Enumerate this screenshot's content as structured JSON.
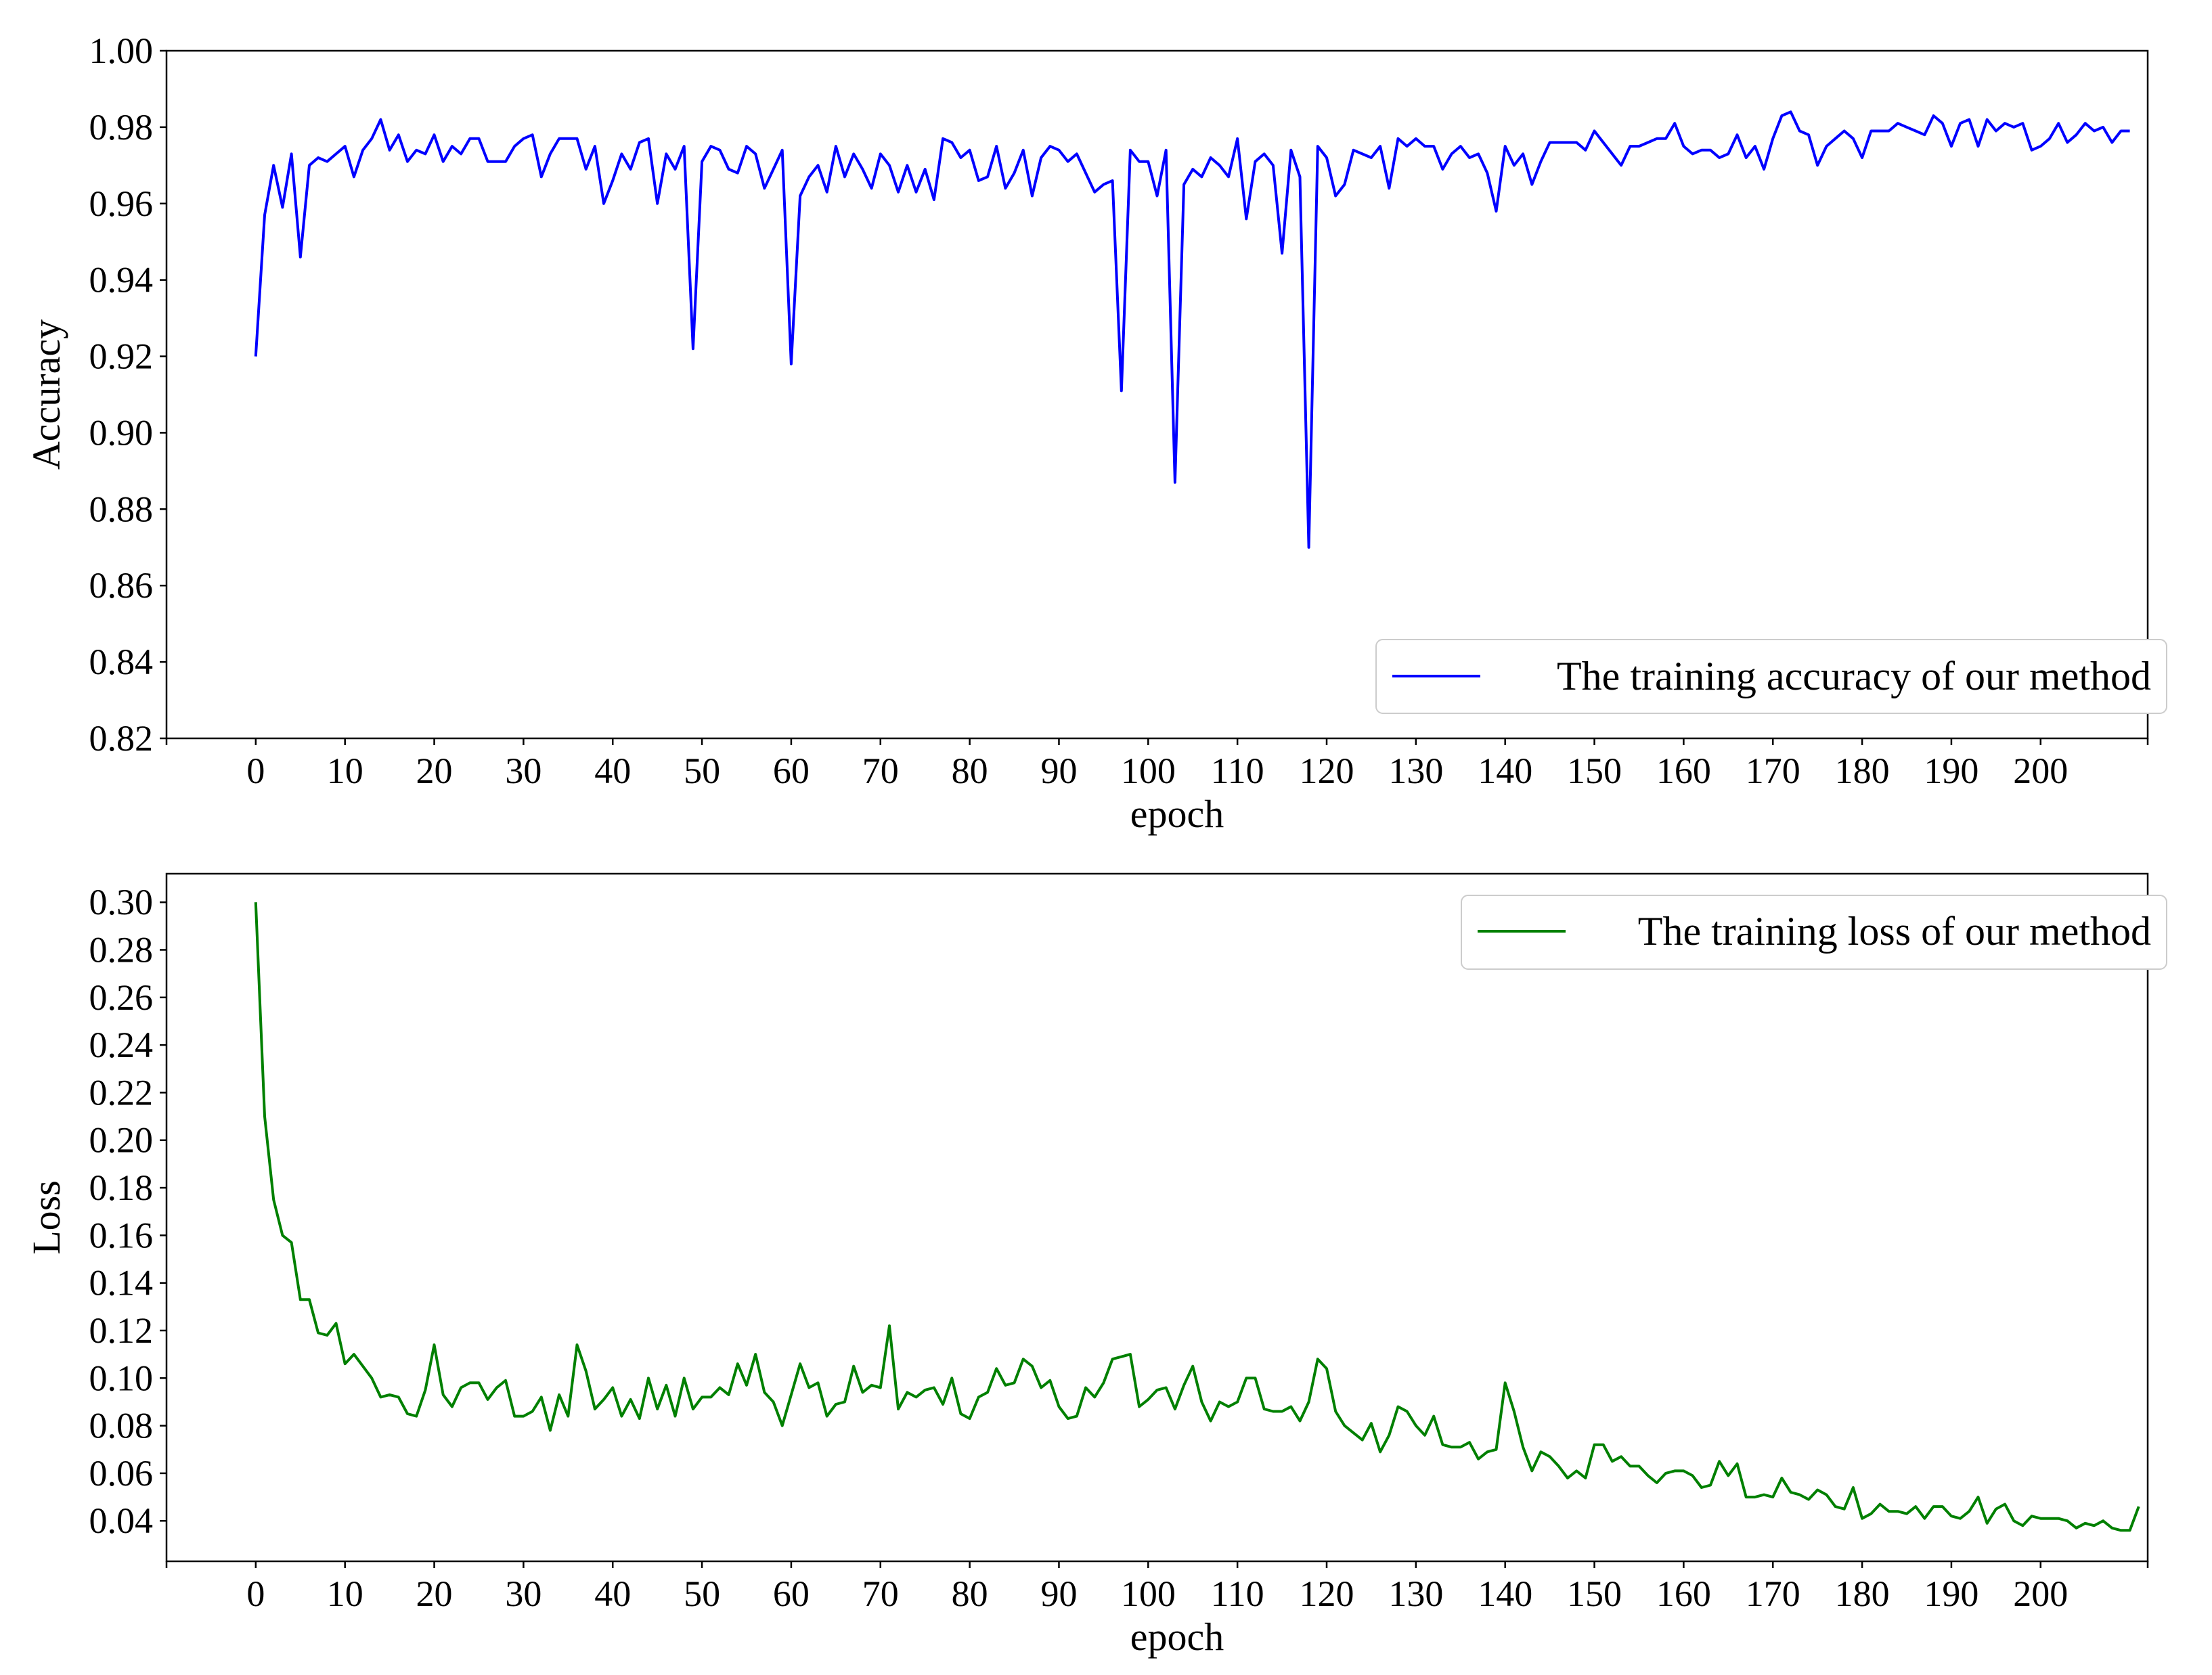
{
  "chart_data": [
    {
      "type": "line",
      "xlabel": "epoch",
      "ylabel": "Accuracy",
      "xlim": [
        -10,
        212
      ],
      "ylim": [
        0.82,
        1.0
      ],
      "xticks": [
        0,
        10,
        20,
        30,
        40,
        50,
        60,
        70,
        80,
        90,
        100,
        110,
        120,
        130,
        140,
        150,
        160,
        170,
        180,
        190,
        200
      ],
      "yticks": [
        0.82,
        0.84,
        0.86,
        0.88,
        0.9,
        0.92,
        0.94,
        0.96,
        0.98,
        1.0
      ],
      "ytick_labels": [
        "0.82",
        "0.84",
        "0.86",
        "0.88",
        "0.90",
        "0.92",
        "0.94",
        "0.96",
        "0.98",
        "1.00"
      ],
      "grid": false,
      "legend_position": "lower-right",
      "series": [
        {
          "name": "The training accuracy of our method",
          "color": "#0000ff",
          "x_start": 0,
          "values": [
            0.92,
            0.957,
            0.97,
            0.959,
            0.973,
            0.946,
            0.97,
            0.972,
            0.971,
            0.973,
            0.975,
            0.967,
            0.974,
            0.977,
            0.982,
            0.974,
            0.978,
            0.971,
            0.974,
            0.973,
            0.978,
            0.971,
            0.975,
            0.973,
            0.977,
            0.977,
            0.971,
            0.971,
            0.971,
            0.975,
            0.977,
            0.978,
            0.967,
            0.973,
            0.977,
            0.977,
            0.977,
            0.969,
            0.975,
            0.96,
            0.966,
            0.973,
            0.969,
            0.976,
            0.977,
            0.96,
            0.973,
            0.969,
            0.975,
            0.922,
            0.971,
            0.975,
            0.974,
            0.969,
            0.968,
            0.975,
            0.973,
            0.964,
            0.969,
            0.974,
            0.918,
            0.962,
            0.967,
            0.97,
            0.963,
            0.975,
            0.967,
            0.973,
            0.969,
            0.964,
            0.973,
            0.97,
            0.963,
            0.97,
            0.963,
            0.969,
            0.961,
            0.977,
            0.976,
            0.972,
            0.974,
            0.966,
            0.967,
            0.975,
            0.964,
            0.968,
            0.974,
            0.962,
            0.972,
            0.975,
            0.974,
            0.971,
            0.973,
            0.968,
            0.963,
            0.965,
            0.966,
            0.911,
            0.974,
            0.971,
            0.971,
            0.962,
            0.974,
            0.887,
            0.965,
            0.969,
            0.967,
            0.972,
            0.97,
            0.967,
            0.977,
            0.956,
            0.971,
            0.973,
            0.97,
            0.947,
            0.974,
            0.967,
            0.87,
            0.975,
            0.972,
            0.962,
            0.965,
            0.974,
            0.973,
            0.972,
            0.975,
            0.964,
            0.977,
            0.975,
            0.977,
            0.975,
            0.975,
            0.969,
            0.973,
            0.975,
            0.972,
            0.973,
            0.968,
            0.958,
            0.975,
            0.97,
            0.973,
            0.965,
            0.971,
            0.976,
            0.976,
            0.976,
            0.976,
            0.974,
            0.979,
            0.976,
            0.973,
            0.97,
            0.975,
            0.975,
            0.976,
            0.977,
            0.977,
            0.981,
            0.975,
            0.973,
            0.974,
            0.974,
            0.972,
            0.973,
            0.978,
            0.972,
            0.975,
            0.969,
            0.977,
            0.983,
            0.984,
            0.979,
            0.978,
            0.97,
            0.975,
            0.977,
            0.979,
            0.977,
            0.972,
            0.979,
            0.979,
            0.979,
            0.981,
            0.98,
            0.979,
            0.978,
            0.983,
            0.981,
            0.975,
            0.981,
            0.982,
            0.975,
            0.982,
            0.979,
            0.981,
            0.98,
            0.981,
            0.974,
            0.975,
            0.977,
            0.981,
            0.976,
            0.978,
            0.981,
            0.979,
            0.98,
            0.976,
            0.979,
            0.979
          ]
        }
      ]
    },
    {
      "type": "line",
      "xlabel": "epoch",
      "ylabel": "Loss",
      "xlim": [
        -10,
        212
      ],
      "ylim": [
        0.023,
        0.312
      ],
      "xticks": [
        0,
        10,
        20,
        30,
        40,
        50,
        60,
        70,
        80,
        90,
        100,
        110,
        120,
        130,
        140,
        150,
        160,
        170,
        180,
        190,
        200
      ],
      "yticks": [
        0.04,
        0.06,
        0.08,
        0.1,
        0.12,
        0.14,
        0.16,
        0.18,
        0.2,
        0.22,
        0.24,
        0.26,
        0.28,
        0.3
      ],
      "ytick_labels": [
        "0.04",
        "0.06",
        "0.08",
        "0.10",
        "0.12",
        "0.14",
        "0.16",
        "0.18",
        "0.20",
        "0.22",
        "0.24",
        "0.26",
        "0.28",
        "0.30"
      ],
      "grid": false,
      "legend_position": "upper-right",
      "series": [
        {
          "name": "The training loss of our method",
          "color": "#008000",
          "x_start": 0,
          "values": [
            0.3,
            0.21,
            0.175,
            0.16,
            0.157,
            0.133,
            0.133,
            0.119,
            0.118,
            0.123,
            0.106,
            0.11,
            0.105,
            0.1,
            0.092,
            0.093,
            0.092,
            0.085,
            0.084,
            0.095,
            0.114,
            0.093,
            0.088,
            0.096,
            0.098,
            0.098,
            0.091,
            0.096,
            0.099,
            0.084,
            0.084,
            0.086,
            0.092,
            0.078,
            0.093,
            0.084,
            0.114,
            0.103,
            0.087,
            0.091,
            0.096,
            0.084,
            0.091,
            0.083,
            0.1,
            0.087,
            0.097,
            0.084,
            0.1,
            0.087,
            0.092,
            0.092,
            0.096,
            0.093,
            0.106,
            0.097,
            0.11,
            0.094,
            0.09,
            0.08,
            0.093,
            0.106,
            0.096,
            0.098,
            0.084,
            0.089,
            0.09,
            0.105,
            0.094,
            0.097,
            0.096,
            0.122,
            0.087,
            0.094,
            0.092,
            0.095,
            0.096,
            0.089,
            0.1,
            0.085,
            0.083,
            0.092,
            0.094,
            0.104,
            0.097,
            0.098,
            0.108,
            0.105,
            0.096,
            0.099,
            0.088,
            0.083,
            0.084,
            0.096,
            0.092,
            0.098,
            0.108,
            0.109,
            0.11,
            0.088,
            0.091,
            0.095,
            0.096,
            0.087,
            0.097,
            0.105,
            0.09,
            0.082,
            0.09,
            0.088,
            0.09,
            0.1,
            0.1,
            0.087,
            0.086,
            0.086,
            0.088,
            0.082,
            0.09,
            0.108,
            0.104,
            0.086,
            0.08,
            0.077,
            0.074,
            0.081,
            0.069,
            0.076,
            0.088,
            0.086,
            0.08,
            0.076,
            0.084,
            0.072,
            0.071,
            0.071,
            0.073,
            0.066,
            0.069,
            0.07,
            0.098,
            0.086,
            0.071,
            0.061,
            0.069,
            0.067,
            0.063,
            0.058,
            0.061,
            0.058,
            0.072,
            0.072,
            0.065,
            0.067,
            0.063,
            0.063,
            0.059,
            0.056,
            0.06,
            0.061,
            0.061,
            0.059,
            0.054,
            0.055,
            0.065,
            0.059,
            0.064,
            0.05,
            0.05,
            0.051,
            0.05,
            0.058,
            0.052,
            0.051,
            0.049,
            0.053,
            0.051,
            0.046,
            0.045,
            0.054,
            0.041,
            0.043,
            0.047,
            0.044,
            0.044,
            0.043,
            0.046,
            0.041,
            0.046,
            0.046,
            0.042,
            0.041,
            0.044,
            0.05,
            0.039,
            0.045,
            0.047,
            0.04,
            0.038,
            0.042,
            0.041,
            0.041,
            0.041,
            0.04,
            0.037,
            0.039,
            0.038,
            0.04,
            0.037,
            0.036,
            0.036,
            0.046
          ]
        }
      ]
    }
  ]
}
